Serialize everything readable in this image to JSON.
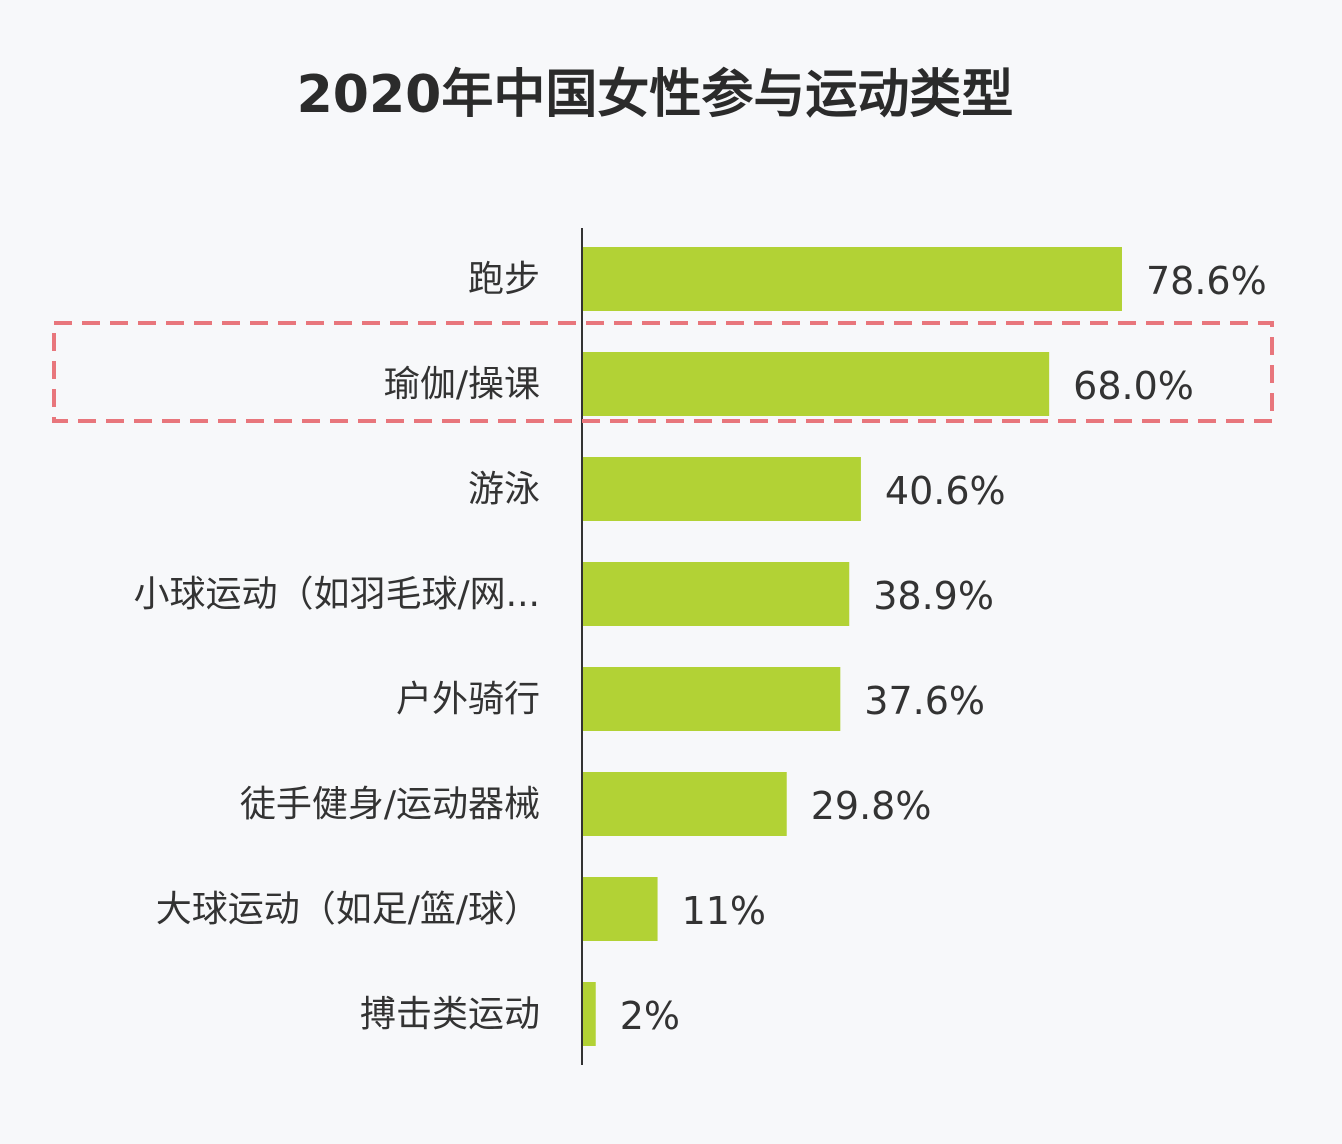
{
  "chart_data": {
    "type": "bar",
    "orientation": "horizontal",
    "title": "2020年中国女性参与运动类型",
    "categories": [
      "跑步",
      "瑜伽/操课",
      "游泳",
      "小球运动（如羽毛球/网...",
      "户外骑行",
      "徒手健身/运动器械",
      "大球运动（如足/篮/球）",
      "搏击类运动"
    ],
    "values": [
      78.6,
      68.0,
      40.6,
      38.9,
      37.6,
      29.8,
      11,
      2
    ],
    "data_labels": [
      "78.6%",
      "68.0%",
      "40.6%",
      "38.9%",
      "37.6%",
      "29.8%",
      "11%",
      "2%"
    ],
    "unit": "%",
    "xlim": [
      0,
      100
    ],
    "grid": false,
    "highlighted_category": "瑜伽/操课",
    "colors": {
      "bar": "#b2d235",
      "highlight_box": "#e8767c",
      "axis": "#333333",
      "text": "#333333"
    }
  }
}
